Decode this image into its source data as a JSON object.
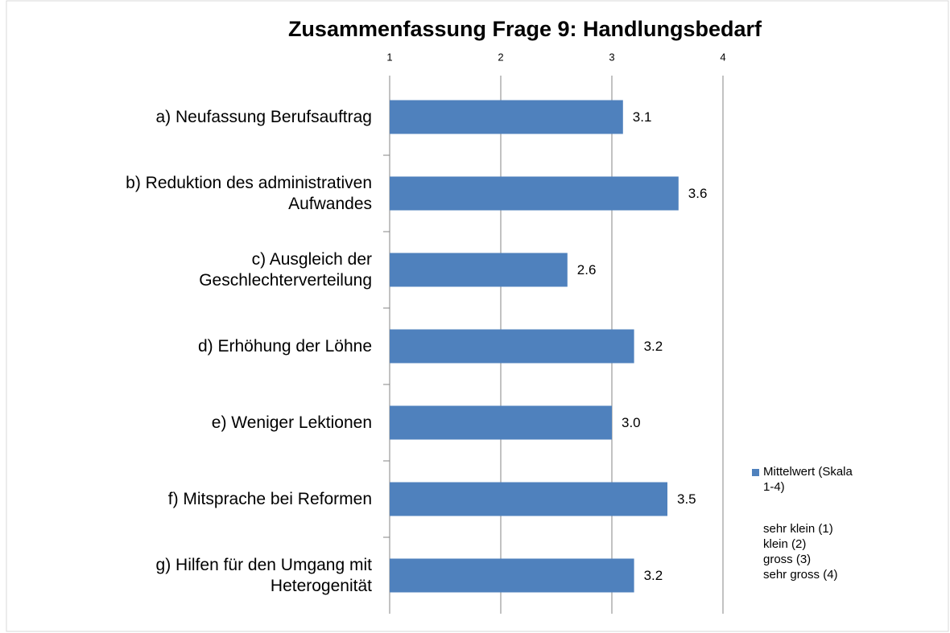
{
  "chart_data": {
    "type": "bar",
    "orientation": "horizontal",
    "title": "Zusammenfassung Frage 9: Handlungsbedarf",
    "categories": [
      "a) Neufassung Berufsauftrag",
      "b) Reduktion des administrativen\nAufwandes",
      "c) Ausgleich der\nGeschlechterverteilung",
      "d) Erhöhung der Löhne",
      "e) Weniger Lektionen",
      "f) Mitsprache bei Reformen",
      "g) Hilfen für den Umgang mit\nHeterogenität"
    ],
    "series": [
      {
        "name": "Mittelwert (Skala\n1-4)",
        "color": "#4f81bd",
        "values": [
          3.1,
          3.6,
          2.6,
          3.2,
          3.0,
          3.5,
          3.2
        ],
        "value_labels": [
          "3.1",
          "3.6",
          "2.6",
          "3.2",
          "3.0",
          "3.5",
          "3.2"
        ]
      }
    ],
    "legend_note": [
      "sehr klein (1)",
      "klein (2)",
      "gross (3)",
      "sehr gross  (4)"
    ],
    "xlim": [
      1,
      4
    ],
    "xticks": [
      1,
      2,
      3,
      4
    ],
    "grid": true,
    "legend": "right"
  }
}
